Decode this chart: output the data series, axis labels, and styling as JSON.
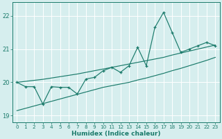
{
  "xlabel": "Humidex (Indice chaleur)",
  "x": [
    0,
    1,
    2,
    3,
    4,
    5,
    6,
    7,
    8,
    9,
    10,
    11,
    12,
    13,
    14,
    15,
    16,
    17,
    18,
    19,
    20,
    21,
    22,
    23
  ],
  "line_jagged": [
    20.0,
    19.87,
    19.87,
    19.35,
    19.87,
    19.85,
    19.85,
    19.65,
    20.1,
    20.15,
    20.35,
    20.45,
    20.3,
    20.5,
    21.05,
    20.5,
    21.65,
    22.1,
    21.5,
    20.9,
    21.0,
    21.1,
    21.2,
    21.1
  ],
  "line_smooth_upper": [
    20.0,
    20.03,
    20.06,
    20.09,
    20.13,
    20.17,
    20.21,
    20.25,
    20.3,
    20.35,
    20.4,
    20.45,
    20.5,
    20.55,
    20.6,
    20.65,
    20.7,
    20.75,
    20.82,
    20.88,
    20.94,
    21.0,
    21.06,
    21.12
  ],
  "line_smooth_lower": [
    19.15,
    19.22,
    19.29,
    19.36,
    19.43,
    19.5,
    19.57,
    19.64,
    19.71,
    19.78,
    19.85,
    19.9,
    19.95,
    20.0,
    20.07,
    20.13,
    20.2,
    20.27,
    20.35,
    20.42,
    20.5,
    20.58,
    20.66,
    20.75
  ],
  "color": "#1a7a6a",
  "bg_color": "#d6eeee",
  "grid_color": "#b8d8d8",
  "ylim": [
    18.8,
    22.4
  ],
  "yticks": [
    19,
    20,
    21,
    22
  ],
  "xlim": [
    -0.5,
    23.5
  ],
  "figsize": [
    3.2,
    2.0
  ],
  "dpi": 100
}
